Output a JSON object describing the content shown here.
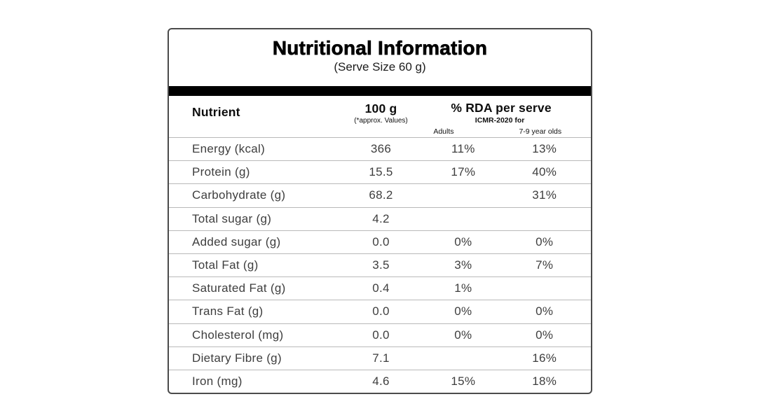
{
  "card": {
    "title": "Nutritional Information",
    "subtitle": "(Serve Size 60 g)"
  },
  "table": {
    "headers": {
      "nutrient": "Nutrient",
      "per100g": "100 g",
      "per100g_note": "(*approx. Values)",
      "rda": "% RDA per serve",
      "rda_note": "ICMR-2020 for",
      "rda_sub_adults": "Adults",
      "rda_sub_children": "7-9 year olds"
    },
    "rows": [
      {
        "nutrient": "Energy (kcal)",
        "per100g": "366",
        "rda_adults": "11%",
        "rda_children": "13%"
      },
      {
        "nutrient": "Protein (g)",
        "per100g": "15.5",
        "rda_adults": "17%",
        "rda_children": "40%"
      },
      {
        "nutrient": "Carbohydrate (g)",
        "per100g": "68.2",
        "rda_adults": "",
        "rda_children": "31%"
      },
      {
        "nutrient": "Total sugar (g)",
        "per100g": "4.2",
        "rda_adults": "",
        "rda_children": ""
      },
      {
        "nutrient": "Added sugar (g)",
        "per100g": "0.0",
        "rda_adults": "0%",
        "rda_children": "0%"
      },
      {
        "nutrient": "Total Fat (g)",
        "per100g": "3.5",
        "rda_adults": "3%",
        "rda_children": "7%"
      },
      {
        "nutrient": "Saturated Fat (g)",
        "per100g": "0.4",
        "rda_adults": "1%",
        "rda_children": ""
      },
      {
        "nutrient": "Trans Fat (g)",
        "per100g": "0.0",
        "rda_adults": "0%",
        "rda_children": "0%"
      },
      {
        "nutrient": "Cholesterol (mg)",
        "per100g": "0.0",
        "rda_adults": "0%",
        "rda_children": "0%"
      },
      {
        "nutrient": "Dietary Fibre (g)",
        "per100g": "7.1",
        "rda_adults": "",
        "rda_children": "16%"
      },
      {
        "nutrient": "Iron (mg)",
        "per100g": "4.6",
        "rda_adults": "15%",
        "rda_children": "18%"
      }
    ]
  },
  "colors": {
    "divider_bar": "#000000",
    "card_border": "#4b4b4b",
    "row_divider": "#b9b9b9",
    "title_text": "#000000",
    "body_text": "#3e3e3e"
  }
}
